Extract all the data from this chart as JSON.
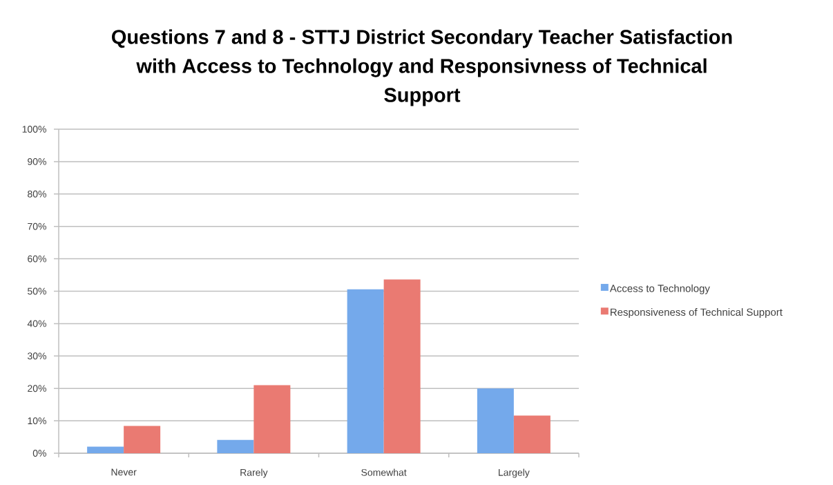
{
  "chart_data": {
    "type": "bar",
    "title": "Questions 7 and 8 - STTJ District Secondary Teacher Satisfaction with Access to Technology and Responsivness of Technical Support",
    "categories": [
      "Never",
      "Rarely",
      "Somewhat",
      "Largely"
    ],
    "series": [
      {
        "name": "Access to Technology",
        "color": "#74a9eb",
        "values": [
          2,
          4.1,
          50.6,
          20
        ]
      },
      {
        "name": "Responsiveness of Technical Support",
        "color": "#ea7a72",
        "values": [
          8.4,
          21,
          53.6,
          11.6
        ]
      }
    ],
    "ylim": [
      0,
      100
    ],
    "yticks": [
      {
        "value": 0,
        "label": "0%"
      },
      {
        "value": 10,
        "label": "10%"
      },
      {
        "value": 20,
        "label": "20%"
      },
      {
        "value": 30,
        "label": "30%"
      },
      {
        "value": 40,
        "label": "40%"
      },
      {
        "value": 50,
        "label": "50%"
      },
      {
        "value": 60,
        "label": "60%"
      },
      {
        "value": 70,
        "label": "70%"
      },
      {
        "value": 80,
        "label": "80%"
      },
      {
        "value": 90,
        "label": "90%"
      },
      {
        "value": 100,
        "label": "100%"
      }
    ],
    "grid": "y",
    "legend": "right"
  }
}
